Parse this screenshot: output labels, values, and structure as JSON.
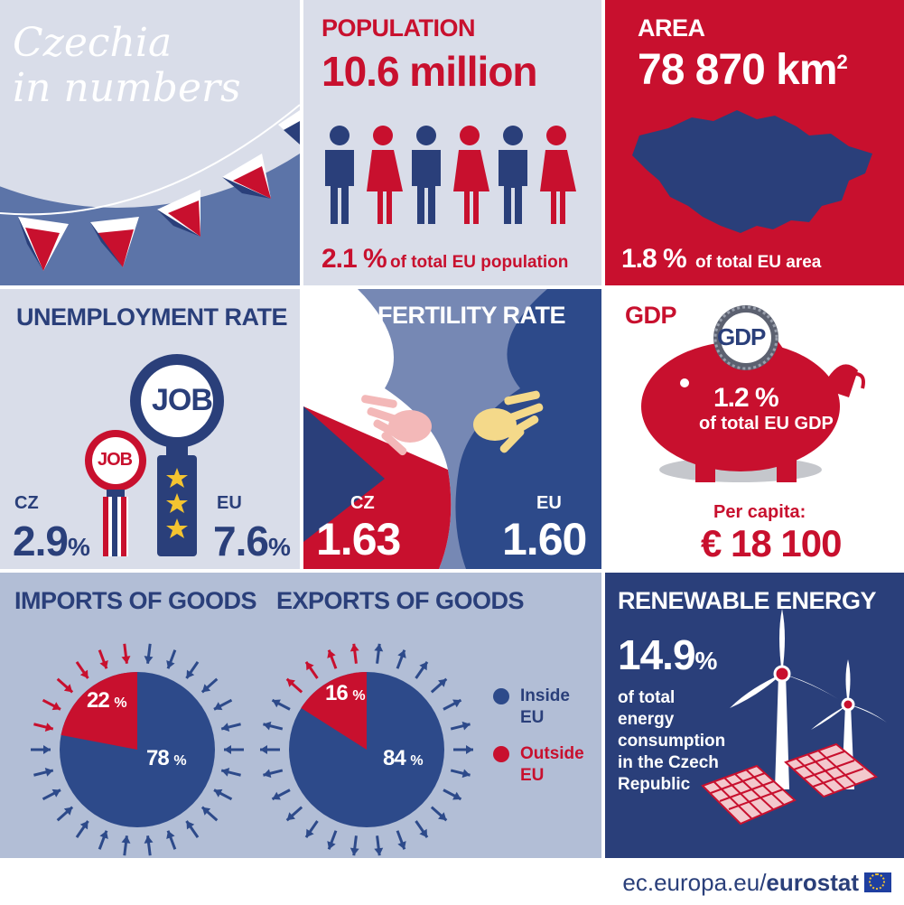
{
  "header": {
    "title_line1": "Czechia",
    "title_line2": "in numbers"
  },
  "population": {
    "title": "POPULATION",
    "value": "10.6 million",
    "share": "2.1 %",
    "share_label": "of total EU population"
  },
  "area": {
    "title": "AREA",
    "value": "78 870 km",
    "unit_sup": "2",
    "share": "1.8 %",
    "share_label": "of total EU area"
  },
  "unemployment": {
    "title": "UNEMPLOYMENT RATE",
    "job_label": "JOB",
    "cz_label": "CZ",
    "cz_value": "2.9",
    "eu_label": "EU",
    "eu_value": "7.6",
    "pct": "%"
  },
  "fertility": {
    "title": "FERTILITY RATE",
    "cz_label": "CZ",
    "cz_value": "1.63",
    "eu_label": "EU",
    "eu_value": "1.60"
  },
  "gdp": {
    "title": "GDP",
    "coin_label": "GDP",
    "share": "1.2 %",
    "share_label": "of total EU GDP",
    "per_capita_label": "Per capita:",
    "per_capita_value": "€ 18 100"
  },
  "imports": {
    "title": "IMPORTS OF GOODS",
    "outside_pct": "22",
    "inside_pct": "78",
    "pct": "%"
  },
  "exports": {
    "title": "EXPORTS OF GOODS",
    "outside_pct": "16",
    "inside_pct": "84",
    "pct": "%"
  },
  "legend": {
    "inside_line1": "Inside",
    "inside_line2": "EU",
    "outside_line1": "Outside",
    "outside_line2": "EU"
  },
  "renewable": {
    "title": "RENEWABLE ENERGY",
    "value": "14.9",
    "pct": "%",
    "line1": "of total",
    "line2": "energy",
    "line3": "consumption",
    "line4": "in the Czech",
    "line5": "Republic"
  },
  "footer": {
    "url": "ec.europa.eu/",
    "brand": "eurostat"
  },
  "colors": {
    "navy": "#2a3f7a",
    "red": "#c8102e",
    "light": "#d9dde9",
    "mid": "#5c74a8",
    "blue_pie": "#2d4a8a"
  },
  "chart_data": [
    {
      "type": "pie",
      "title": "IMPORTS OF GOODS",
      "categories": [
        "Inside EU",
        "Outside EU"
      ],
      "values": [
        78,
        22
      ]
    },
    {
      "type": "pie",
      "title": "EXPORTS OF GOODS",
      "categories": [
        "Inside EU",
        "Outside EU"
      ],
      "values": [
        84,
        16
      ]
    }
  ]
}
